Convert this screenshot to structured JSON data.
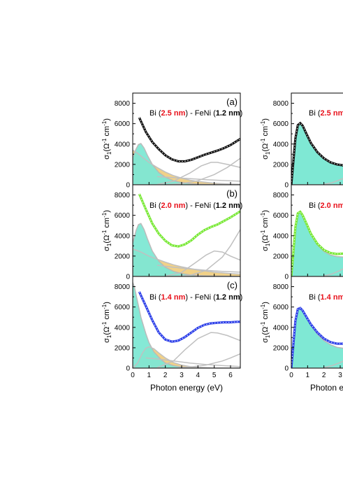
{
  "chart_data": [
    {
      "type": "line",
      "panel_label": "(a)",
      "title_parts": [
        "Bi (",
        "2.5 nm",
        ") - FeNi (",
        "1.2 nm",
        ")"
      ],
      "xlim": [
        0,
        6.6
      ],
      "ylim": [
        0,
        9000
      ],
      "x_ticks": [
        0,
        1,
        2,
        3,
        4,
        5,
        6
      ],
      "y_ticks": [
        0,
        2000,
        4000,
        6000,
        8000
      ],
      "fit_color": "#111111",
      "series": [
        {
          "x": [
            0.4,
            0.8,
            1.2,
            1.6,
            2.0,
            2.4,
            2.8,
            3.2,
            3.6,
            4.0,
            4.4,
            4.8,
            5.2,
            5.6,
            6.0,
            6.4,
            6.6
          ],
          "y": [
            6600,
            5200,
            4200,
            3500,
            2900,
            2500,
            2300,
            2300,
            2450,
            2700,
            2950,
            3150,
            3350,
            3600,
            3900,
            4300,
            4500
          ]
        },
        {
          "x": [
            0,
            0.2,
            0.35,
            0.5,
            0.7,
            0.9,
            1.2,
            1.6,
            2.0,
            2.5,
            3.0,
            3.5,
            4.0,
            5.0,
            6.0,
            6.6
          ],
          "y": [
            2700,
            3500,
            3950,
            4050,
            3600,
            2900,
            2000,
            1200,
            750,
            400,
            220,
            120,
            70,
            30,
            10,
            5
          ]
        },
        {
          "x": [
            0,
            0.3,
            0.6,
            1.0,
            1.5,
            2.0,
            2.5,
            3.0,
            3.5,
            4.0,
            5.0,
            6.0,
            6.6
          ],
          "y": [
            3400,
            3100,
            2700,
            2200,
            1700,
            1250,
            900,
            650,
            450,
            320,
            150,
            70,
            40
          ]
        },
        {
          "x": [
            1.5,
            2.5,
            3.5,
            4.2,
            4.8,
            5.2,
            5.8,
            6.6
          ],
          "y": [
            30,
            350,
            1150,
            1850,
            2200,
            2200,
            2000,
            1700
          ]
        },
        {
          "x": [
            2.0,
            3.0,
            4.0,
            5.0,
            5.8,
            6.6
          ],
          "y": [
            0,
            100,
            400,
            1000,
            1700,
            2600
          ]
        },
        {
          "x": [
            1.5,
            2.5,
            3.5,
            4.5,
            5.5,
            6.6
          ],
          "y": [
            800,
            700,
            600,
            500,
            420,
            350
          ]
        }
      ]
    },
    {
      "type": "line",
      "panel_label": "(b)",
      "title_parts": [
        "Bi (",
        "2.0 nm",
        ") - FeNi (",
        "1.2 nm",
        ")"
      ],
      "xlim": [
        0,
        6.6
      ],
      "ylim": [
        0,
        9000
      ],
      "x_ticks": [
        0,
        1,
        2,
        3,
        4,
        5,
        6
      ],
      "y_ticks": [
        0,
        2000,
        4000,
        6000,
        8000
      ],
      "fit_color": "#77e833",
      "series": [
        {
          "x": [
            0.4,
            0.8,
            1.2,
            1.6,
            2.0,
            2.4,
            2.8,
            3.2,
            3.6,
            4.0,
            4.4,
            4.8,
            5.2,
            5.6,
            6.0,
            6.4,
            6.6
          ],
          "y": [
            8100,
            6600,
            5200,
            4200,
            3500,
            3050,
            2950,
            3150,
            3550,
            4100,
            4550,
            4850,
            5100,
            5450,
            5800,
            6200,
            6400
          ]
        },
        {
          "x": [
            0,
            0.2,
            0.35,
            0.5,
            0.7,
            0.9,
            1.2,
            1.6,
            2.0,
            2.5,
            3.0,
            3.5,
            4.0,
            5.0,
            6.0,
            6.6
          ],
          "y": [
            3300,
            4500,
            5100,
            5200,
            4600,
            3700,
            2500,
            1500,
            900,
            500,
            280,
            150,
            90,
            40,
            15,
            8
          ]
        },
        {
          "x": [
            0,
            0.5,
            1.0,
            1.5,
            2.0,
            2.5,
            3.0,
            3.5,
            4.0,
            4.5,
            5.0,
            6.0,
            6.6
          ],
          "y": [
            2700,
            2400,
            2000,
            1700,
            1400,
            1150,
            950,
            780,
            640,
            520,
            420,
            280,
            220
          ]
        },
        {
          "x": [
            2.0,
            3.0,
            3.8,
            4.5,
            5.0,
            5.5,
            6.0,
            6.6
          ],
          "y": [
            30,
            400,
            1300,
            2100,
            2500,
            2400,
            2000,
            1600
          ]
        },
        {
          "x": [
            2.5,
            3.5,
            4.5,
            5.5,
            6.0,
            6.6
          ],
          "y": [
            0,
            100,
            600,
            1900,
            3000,
            4600
          ]
        },
        {
          "x": [
            1.5,
            2.5,
            3.5,
            4.5,
            5.5,
            6.6
          ],
          "y": [
            1100,
            900,
            750,
            600,
            500,
            420
          ]
        }
      ]
    },
    {
      "type": "line",
      "panel_label": "(c)",
      "title_parts": [
        "Bi (",
        "1.4 nm",
        ") - FeNi (",
        "1.2 nm",
        ")"
      ],
      "xlim": [
        0,
        6.6
      ],
      "ylim": [
        0,
        9000
      ],
      "x_ticks": [
        0,
        1,
        2,
        3,
        4,
        5,
        6
      ],
      "y_ticks": [
        0,
        2000,
        4000,
        6000,
        8000
      ],
      "fit_color": "#2a3de8",
      "series": [
        {
          "x": [
            0.4,
            0.8,
            1.2,
            1.6,
            2.0,
            2.4,
            2.8,
            3.2,
            3.6,
            4.0,
            4.4,
            4.8,
            5.2,
            5.6,
            6.0,
            6.4,
            6.6
          ],
          "y": [
            7500,
            6100,
            4700,
            3500,
            2800,
            2600,
            2700,
            3050,
            3500,
            3950,
            4250,
            4400,
            4450,
            4500,
            4500,
            4550,
            4550
          ]
        },
        {
          "x": [
            0,
            0.1,
            0.3,
            0.5,
            0.8,
            1.0,
            1.3,
            1.7,
            2.0,
            2.5,
            3.0,
            3.5,
            4.0,
            5.0,
            6.0,
            6.6
          ],
          "y": [
            8400,
            8000,
            6500,
            5000,
            3400,
            2500,
            1600,
            900,
            500,
            250,
            120,
            60,
            30,
            10,
            5,
            3
          ]
        },
        {
          "x": [
            0,
            0.3,
            0.6,
            0.8,
            1.0,
            1.3,
            1.6,
            2.0,
            2.5,
            3.0,
            3.5,
            4.0,
            5.0,
            6.6
          ],
          "y": [
            0,
            500,
            1500,
            1950,
            2100,
            1900,
            1500,
            1000,
            550,
            300,
            160,
            90,
            30,
            10
          ]
        },
        {
          "x": [
            1.5,
            2.5,
            3.2,
            4.0,
            4.8,
            5.2,
            5.8,
            6.6
          ],
          "y": [
            50,
            700,
            1800,
            2900,
            3500,
            3450,
            3200,
            2700
          ]
        },
        {
          "x": [
            2.5,
            3.5,
            4.5,
            5.5,
            6.0,
            6.6
          ],
          "y": [
            0,
            100,
            300,
            700,
            1000,
            1400
          ]
        },
        {
          "x": [
            0.8,
            1.5,
            2.5,
            3.5,
            4.5,
            5.5,
            6.6
          ],
          "y": [
            1000,
            900,
            700,
            500,
            350,
            250,
            150
          ]
        }
      ]
    },
    {
      "type": "line",
      "panel_label": "",
      "title_parts": [
        "Bi (",
        "2.5 nm",
        "",
        "",
        ""
      ],
      "xlim": [
        0,
        6.6
      ],
      "ylim": [
        0,
        9000
      ],
      "x_ticks": [
        0,
        1,
        2,
        3
      ],
      "y_ticks": [
        0,
        2000,
        4000,
        6000,
        8000
      ],
      "fit_color": "#111111",
      "series": [
        {
          "x": [
            0,
            0.1,
            0.25,
            0.4,
            0.55,
            0.7,
            0.9,
            1.2,
            1.6,
            2.0,
            2.4,
            2.8,
            3.2,
            3.6
          ],
          "y": [
            0,
            1800,
            4500,
            5850,
            6050,
            5800,
            5100,
            4100,
            3200,
            2600,
            2200,
            2000,
            1900,
            1900
          ]
        },
        {
          "x": [
            0,
            0.1,
            0.25,
            0.4,
            0.55,
            0.7,
            0.9,
            1.2,
            1.6,
            2.0,
            2.4,
            2.8,
            3.2,
            3.6
          ],
          "y": [
            0,
            1700,
            4400,
            5800,
            6000,
            5750,
            5050,
            4050,
            3150,
            2550,
            2150,
            1950,
            1850,
            1850
          ]
        },
        {
          "x": [
            2.0,
            2.5,
            3.0,
            3.6
          ],
          "y": [
            50,
            200,
            500,
            900
          ]
        }
      ]
    },
    {
      "type": "line",
      "panel_label": "",
      "title_parts": [
        "Bi (",
        "2.0 nm",
        ")  -",
        "",
        ""
      ],
      "xlim": [
        0,
        6.6
      ],
      "ylim": [
        0,
        9000
      ],
      "x_ticks": [
        0,
        1,
        2,
        3
      ],
      "y_ticks": [
        0,
        2000,
        4000,
        6000,
        8000
      ],
      "fit_color": "#77e833",
      "series": [
        {
          "x": [
            0,
            0.1,
            0.25,
            0.4,
            0.55,
            0.7,
            0.9,
            1.2,
            1.6,
            2.0,
            2.4,
            2.8,
            3.2,
            3.6
          ],
          "y": [
            0,
            1800,
            4800,
            6200,
            6350,
            6000,
            5300,
            4200,
            3200,
            2600,
            2300,
            2200,
            2250,
            2300
          ]
        },
        {
          "x": [
            0,
            0.1,
            0.25,
            0.4,
            0.55,
            0.7,
            0.9,
            1.2,
            1.6,
            2.0,
            2.4,
            2.8,
            3.2,
            3.6
          ],
          "y": [
            0,
            1700,
            4700,
            6150,
            6300,
            5950,
            5200,
            4100,
            3100,
            2450,
            2100,
            1950,
            1900,
            1900
          ]
        },
        {
          "x": [
            2.0,
            2.5,
            3.0,
            3.6
          ],
          "y": [
            50,
            250,
            600,
            1100
          ]
        }
      ]
    },
    {
      "type": "line",
      "panel_label": "",
      "title_parts": [
        "Bi (",
        "1.4 nm",
        ")",
        "",
        ""
      ],
      "xlim": [
        0,
        6.6
      ],
      "ylim": [
        0,
        9000
      ],
      "x_ticks": [
        0,
        1,
        2,
        3
      ],
      "y_ticks": [
        0,
        2000,
        4000,
        6000,
        8000
      ],
      "fit_color": "#2a3de8",
      "series": [
        {
          "x": [
            0,
            0.1,
            0.25,
            0.4,
            0.55,
            0.7,
            0.9,
            1.2,
            1.6,
            2.0,
            2.4,
            2.8,
            3.2,
            3.6
          ],
          "y": [
            0,
            1800,
            4600,
            5800,
            5900,
            5650,
            5100,
            4300,
            3500,
            2900,
            2550,
            2400,
            2400,
            2450
          ]
        },
        {
          "x": [
            0,
            0.1,
            0.25,
            0.4,
            0.55,
            0.7,
            0.9,
            1.2,
            1.6,
            2.0,
            2.4,
            2.8,
            3.2,
            3.6
          ],
          "y": [
            0,
            1700,
            4500,
            5750,
            5850,
            5600,
            5050,
            4200,
            3350,
            2700,
            2300,
            2050,
            1950,
            1900
          ]
        },
        {
          "x": [
            2.0,
            2.5,
            3.0,
            3.6
          ],
          "y": [
            50,
            250,
            550,
            1000
          ]
        }
      ]
    }
  ],
  "axis_text": {
    "ylabel_sigma": "σ",
    "ylabel_sub": "1",
    "ylabel_open": "(Ω",
    "ylabel_sup1": "-1",
    "ylabel_cm": " cm",
    "ylabel_sup2": "-1",
    "ylabel_close": ")",
    "xlabel_left": "Photon energy (eV)",
    "xlabel_right": "Photon en"
  },
  "colors": {
    "cyan_fill": "#7fe8d4",
    "cyan_line": "#b8b8b8",
    "orange_fill": "#f0cc7a",
    "gray_line": "#c0c0c0",
    "red_text": "#e8101a"
  }
}
